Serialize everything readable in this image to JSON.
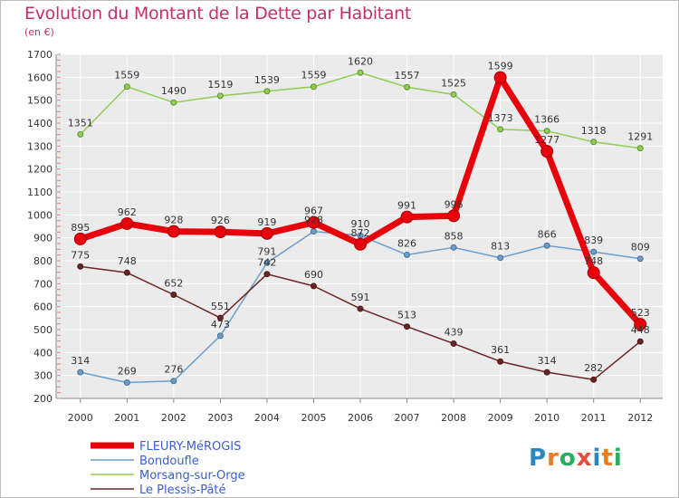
{
  "title": "Evolution du Montant de la Dette par Habitant",
  "subtitle": "(en €)",
  "logo": {
    "text": "Proxiti",
    "letters": [
      {
        "ch": "P",
        "color": "#2e86c1"
      },
      {
        "ch": "r",
        "color": "#e67e22"
      },
      {
        "ch": "o",
        "color": "#27ae60"
      },
      {
        "ch": "x",
        "color": "#e74c3c"
      },
      {
        "ch": "i",
        "color": "#2e86c1"
      },
      {
        "ch": "t",
        "color": "#e67e22"
      },
      {
        "ch": "i",
        "color": "#27ae60"
      }
    ]
  },
  "chart_data": {
    "type": "line",
    "x": [
      "2000",
      "2001",
      "2002",
      "2003",
      "2004",
      "2005",
      "2006",
      "2007",
      "2008",
      "2009",
      "2010",
      "2011",
      "2012"
    ],
    "ylim": [
      200,
      1700
    ],
    "yticks": [
      200,
      300,
      400,
      500,
      600,
      700,
      800,
      900,
      1000,
      1100,
      1200,
      1300,
      1400,
      1500,
      1600,
      1700
    ],
    "grid": true,
    "legend_position": "bottom-left",
    "series": [
      {
        "name": "FLEURY-MéROGIS",
        "color": "#e8000b",
        "width": 7,
        "marker_r": 6.5,
        "values": [
          895,
          962,
          928,
          926,
          919,
          967,
          872,
          991,
          996,
          1599,
          1277,
          748,
          523
        ]
      },
      {
        "name": "Bondoufle",
        "color": "#6a9ecb",
        "width": 1.5,
        "marker_r": 3,
        "values": [
          314,
          269,
          276,
          473,
          791,
          928,
          910,
          826,
          858,
          813,
          866,
          839,
          809
        ]
      },
      {
        "name": "Morsang-sur-Orge",
        "color": "#8fce52",
        "width": 1.5,
        "marker_r": 3,
        "values": [
          1351,
          1559,
          1490,
          1519,
          1539,
          1559,
          1620,
          1557,
          1525,
          1373,
          1366,
          1318,
          1291
        ]
      },
      {
        "name": "Le Plessis-Pâté",
        "color": "#6b2424",
        "width": 1.5,
        "marker_r": 3,
        "values": [
          775,
          748,
          652,
          551,
          742,
          690,
          591,
          513,
          439,
          361,
          314,
          282,
          448
        ]
      }
    ]
  }
}
